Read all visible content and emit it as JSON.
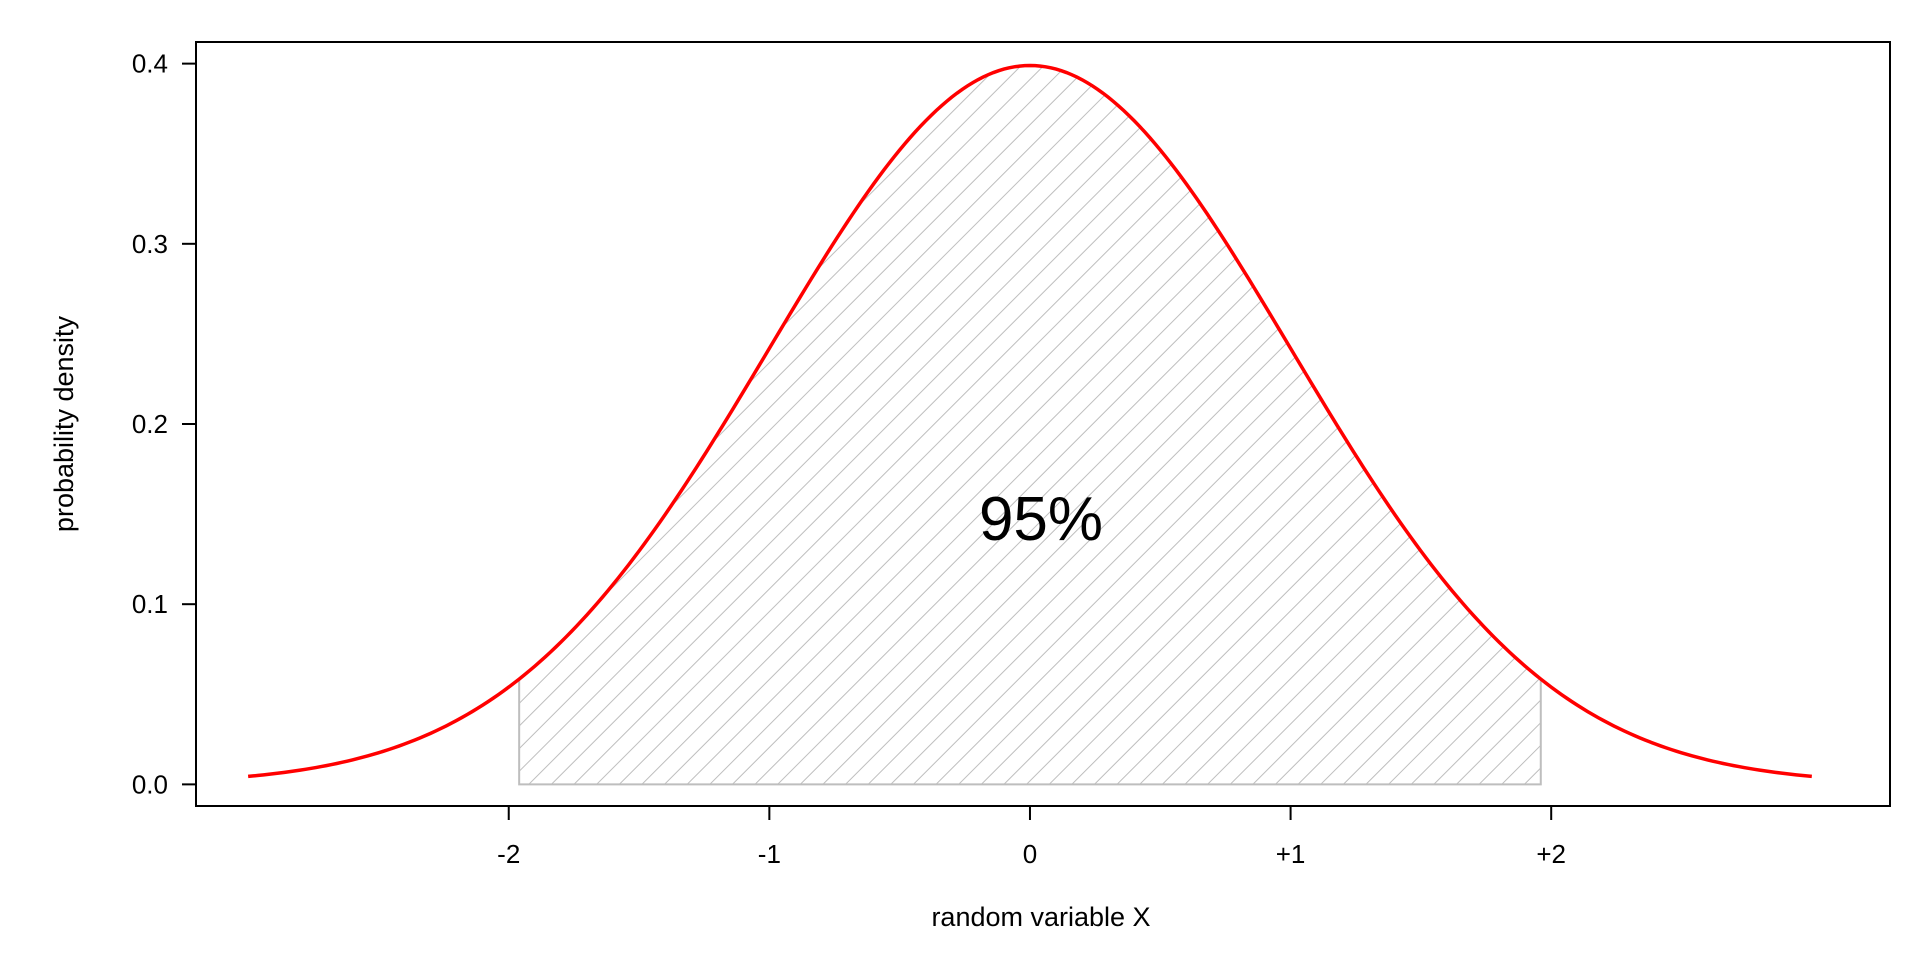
{
  "chart_data": {
    "type": "area",
    "xlabel": "random variable X",
    "ylabel": "probability density",
    "annotation": "95%",
    "xlim": [
      -3.2,
      3.3
    ],
    "ylim": [
      -0.012,
      0.412
    ],
    "xticks": [
      {
        "value": -2,
        "label": "-2"
      },
      {
        "value": -1,
        "label": "-1"
      },
      {
        "value": 0,
        "label": "0"
      },
      {
        "value": 1,
        "label": "+1"
      },
      {
        "value": 2,
        "label": "+2"
      }
    ],
    "yticks": [
      {
        "value": 0.0,
        "label": "0.0"
      },
      {
        "value": 0.1,
        "label": "0.1"
      },
      {
        "value": 0.2,
        "label": "0.2"
      },
      {
        "value": 0.3,
        "label": "0.3"
      },
      {
        "value": 0.4,
        "label": "0.4"
      }
    ],
    "curve": {
      "distribution": "standard normal",
      "mean": 0,
      "sd": 1,
      "x_range": [
        -3,
        3
      ],
      "color": "#ff0000"
    },
    "shaded_region": {
      "x_from": -1.96,
      "x_to": 1.96,
      "fill": "hatched",
      "color": "#bebebe"
    },
    "grid": false,
    "legend": "none"
  }
}
